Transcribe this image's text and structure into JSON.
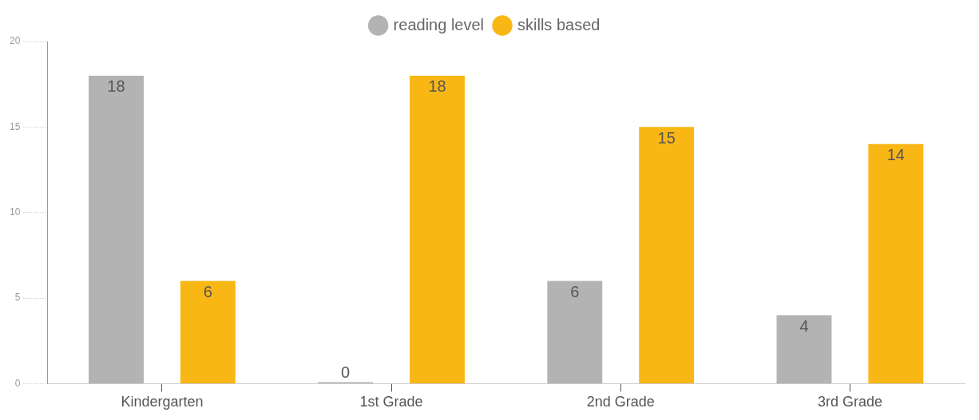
{
  "chart_data": {
    "type": "bar",
    "categories": [
      "Kindergarten",
      "1st Grade",
      "2nd Grade",
      "3rd Grade"
    ],
    "series": [
      {
        "name": "reading level",
        "color": "#b3b3b3",
        "values": [
          18,
          0,
          6,
          4
        ]
      },
      {
        "name": "skills based",
        "color": "#f9b715",
        "values": [
          6,
          18,
          15,
          14
        ]
      }
    ],
    "ylim": [
      0,
      20
    ],
    "yticks": [
      0,
      5,
      10,
      15,
      20
    ],
    "grid": false,
    "legend": "top",
    "data_labels": true
  }
}
